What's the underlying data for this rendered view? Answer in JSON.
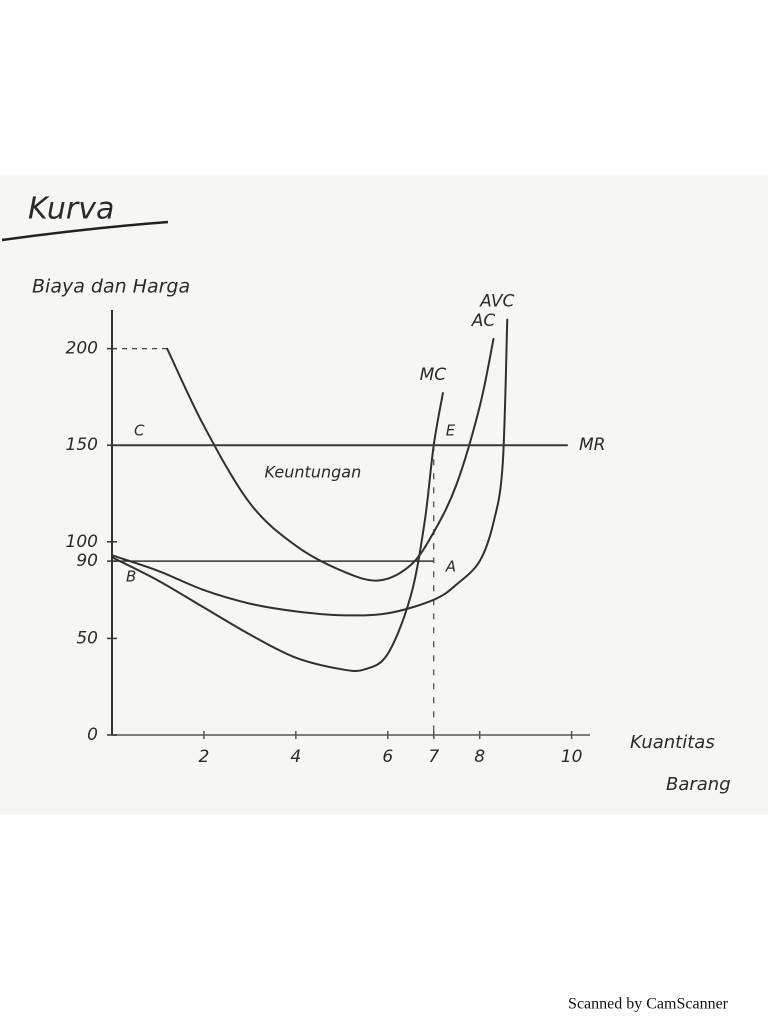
{
  "chart_data": {
    "type": "line",
    "title": "Kurva",
    "y_label": "Biaya dan Harga",
    "x_label": [
      "Kuantitas",
      "Barang"
    ],
    "annotation": "Keuntungan",
    "xlim": [
      0,
      10.4
    ],
    "ylim": [
      0,
      220
    ],
    "xticks": [
      2,
      4,
      6,
      7,
      8,
      10
    ],
    "yticks": [
      0,
      50,
      90,
      100,
      150,
      200
    ],
    "grid": false,
    "series": [
      {
        "name": "AC",
        "color": "#303030",
        "x": [
          1.2,
          2,
          3,
          4,
          5,
          5.8,
          6.5,
          7,
          7.5,
          8,
          8.3
        ],
        "values": [
          200,
          160,
          120,
          98,
          85,
          80,
          88,
          105,
          130,
          170,
          205
        ]
      },
      {
        "name": "AVC",
        "color": "#303030",
        "x": [
          0,
          1,
          2,
          3,
          4,
          5,
          6,
          7,
          7.5,
          8,
          8.3,
          8.5,
          8.6
        ],
        "values": [
          93,
          85,
          75,
          68,
          64,
          62,
          63,
          70,
          78,
          90,
          110,
          140,
          215
        ]
      },
      {
        "name": "MC",
        "color": "#303030",
        "x": [
          0,
          1,
          2,
          3,
          4,
          5,
          5.5,
          6,
          6.5,
          6.8,
          7,
          7.2
        ],
        "values": [
          92,
          80,
          66,
          52,
          40,
          34,
          34,
          42,
          72,
          110,
          150,
          177
        ]
      },
      {
        "name": "MR",
        "color": "#3a3a3a",
        "x": [
          0,
          9.9
        ],
        "values": [
          150,
          150
        ]
      }
    ],
    "points": [
      {
        "label": "C",
        "x": 0,
        "y": 150
      },
      {
        "label": "E",
        "x": 7,
        "y": 150
      },
      {
        "label": "A",
        "x": 7,
        "y": 90
      },
      {
        "label": "B",
        "x": 0,
        "y": 90
      }
    ],
    "footer": "Scanned by CamScanner"
  }
}
